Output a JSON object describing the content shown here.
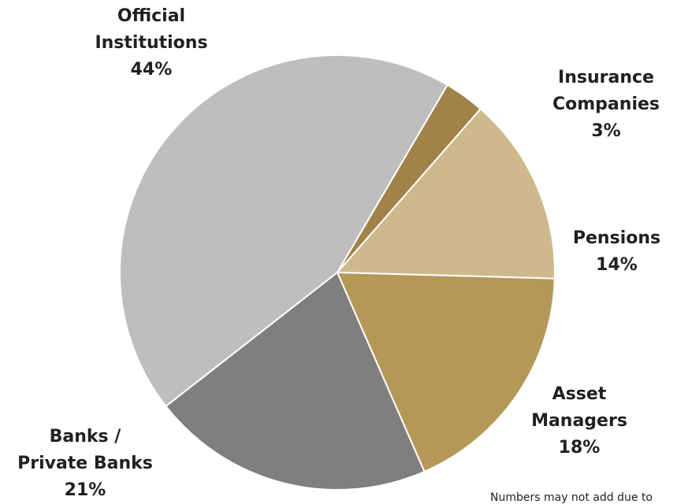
{
  "chart_data": {
    "type": "pie",
    "slices": [
      {
        "label_lines": [
          "Official",
          "Institutions"
        ],
        "value": 44,
        "pct_label": "44%",
        "color": "#bebebe"
      },
      {
        "label_lines": [
          "Insurance",
          "Companies"
        ],
        "value": 3,
        "pct_label": "3%",
        "color": "#a18249"
      },
      {
        "label_lines": [
          "Pensions"
        ],
        "value": 14,
        "pct_label": "14%",
        "color": "#cdb98c"
      },
      {
        "label_lines": [
          "Asset",
          "Managers"
        ],
        "value": 18,
        "pct_label": "18%",
        "color": "#b39858"
      },
      {
        "label_lines": [
          "Banks /",
          "Private Banks"
        ],
        "value": 21,
        "pct_label": "21%",
        "color": "#7f7f7f"
      }
    ],
    "legend": "none",
    "footnote": "Numbers may not add due to"
  }
}
